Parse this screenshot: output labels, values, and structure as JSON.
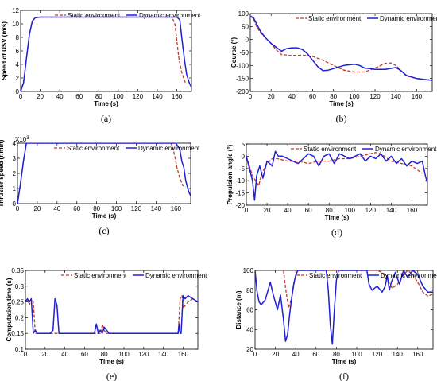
{
  "figure": {
    "legend_static": "Static environment",
    "legend_dynamic": "Dynamic environment",
    "colors": {
      "static": "#c0392b",
      "dynamic": "#1f1fd6",
      "axis": "#000000"
    }
  },
  "chart_data": [
    {
      "id": "a",
      "type": "line",
      "caption": "(a)",
      "xlabel": "Time (s)",
      "ylabel": "Speed of USV (m/s)",
      "xlim": [
        0,
        175
      ],
      "ylim": [
        0,
        12
      ],
      "xticks": [
        0,
        20,
        40,
        60,
        80,
        100,
        120,
        140,
        160
      ],
      "yticks": [
        0,
        2,
        4,
        6,
        8,
        10,
        12
      ],
      "legend": "top-right",
      "series": [
        {
          "name": "Static environment",
          "style": "dashed",
          "x": [
            0,
            3,
            6,
            9,
            12,
            15,
            20,
            40,
            60,
            80,
            100,
            120,
            140,
            155,
            158,
            160,
            162,
            165,
            168,
            170
          ],
          "y": [
            0,
            1.5,
            5,
            8.5,
            10.4,
            10.9,
            11,
            11,
            11,
            11,
            11,
            11,
            11,
            11,
            10,
            7.5,
            5,
            2.8,
            1.5,
            1.1
          ]
        },
        {
          "name": "Dynamic environment",
          "style": "solid",
          "x": [
            0,
            3,
            6,
            9,
            12,
            15,
            20,
            40,
            60,
            80,
            100,
            120,
            140,
            160,
            163,
            165,
            168,
            170,
            173,
            175
          ],
          "y": [
            0,
            1.3,
            5,
            8.5,
            10.4,
            10.9,
            11,
            11,
            11,
            11,
            11,
            11,
            11,
            11,
            10.6,
            8,
            4.5,
            2.5,
            1.2,
            0.6
          ]
        }
      ]
    },
    {
      "id": "b",
      "type": "line",
      "caption": "(b)",
      "xlabel": "Time (s)",
      "ylabel": "Course (°)",
      "xlim": [
        0,
        175
      ],
      "ylim": [
        -200,
        100
      ],
      "xticks": [
        0,
        20,
        40,
        60,
        80,
        100,
        120,
        140,
        160
      ],
      "yticks": [
        -200,
        -150,
        -100,
        -50,
        0,
        50,
        100
      ],
      "legend": "top-right",
      "series": [
        {
          "name": "Static environment",
          "style": "dashed",
          "x": [
            0,
            3,
            6,
            10,
            15,
            20,
            25,
            30,
            40,
            50,
            60,
            70,
            80,
            90,
            100,
            110,
            120,
            130,
            135,
            140,
            150,
            160,
            170,
            175
          ],
          "y": [
            90,
            80,
            50,
            25,
            5,
            -15,
            -40,
            -58,
            -62,
            -60,
            -65,
            -80,
            -100,
            -118,
            -125,
            -125,
            -110,
            -92,
            -90,
            -100,
            -140,
            -150,
            -155,
            -157
          ]
        },
        {
          "name": "Dynamic environment",
          "style": "solid",
          "x": [
            0,
            3,
            6,
            10,
            15,
            20,
            25,
            30,
            35,
            40,
            45,
            50,
            55,
            60,
            65,
            70,
            75,
            80,
            90,
            100,
            105,
            110,
            115,
            120,
            130,
            140,
            145,
            150,
            160,
            170,
            175
          ],
          "y": [
            90,
            85,
            60,
            30,
            5,
            -15,
            -30,
            -45,
            -35,
            -32,
            -32,
            -38,
            -55,
            -80,
            -105,
            -120,
            -118,
            -112,
            -100,
            -95,
            -100,
            -110,
            -112,
            -115,
            -115,
            -108,
            -120,
            -138,
            -150,
            -155,
            -157
          ]
        }
      ]
    },
    {
      "id": "c",
      "type": "line",
      "caption": "(c)",
      "xlabel": "Time (s)",
      "ylabel": "Thruster speed (r/min)",
      "xlim": [
        0,
        175
      ],
      "ylim": [
        0,
        4
      ],
      "xticks": [
        0,
        20,
        40,
        60,
        80,
        100,
        120,
        140,
        160
      ],
      "yticks": [
        0,
        1,
        2,
        3,
        4
      ],
      "y_exponent_label": "X10",
      "y_exponent_sup": "3",
      "legend": "top-right",
      "series": [
        {
          "name": "Static environment",
          "style": "dashed",
          "x": [
            0,
            3,
            6,
            9,
            20,
            40,
            60,
            80,
            100,
            120,
            140,
            155,
            157,
            159,
            161,
            164,
            167,
            170
          ],
          "y": [
            0,
            1.3,
            2.8,
            4,
            4,
            4,
            4,
            4,
            4,
            4,
            4,
            4,
            3.7,
            3.1,
            2.4,
            1.7,
            1.2,
            1.1
          ]
        },
        {
          "name": "Dynamic environment",
          "style": "solid",
          "x": [
            0,
            3,
            6,
            9,
            20,
            40,
            60,
            80,
            100,
            120,
            140,
            160,
            162,
            164,
            166,
            168,
            170,
            173,
            175
          ],
          "y": [
            0,
            1.3,
            2.8,
            4,
            4,
            4,
            4,
            4,
            4,
            4,
            4,
            4,
            3.8,
            3.6,
            2.8,
            2.4,
            1.5,
            0.8,
            0.5
          ]
        }
      ]
    },
    {
      "id": "d",
      "type": "line",
      "caption": "(d)",
      "xlabel": "Time (s)",
      "ylabel": "Propulsion angle (°)",
      "xlim": [
        0,
        175
      ],
      "ylim": [
        -20,
        5
      ],
      "xticks": [
        0,
        20,
        40,
        60,
        80,
        100,
        120,
        140,
        160
      ],
      "yticks": [
        -20,
        -15,
        -10,
        -5,
        0,
        5
      ],
      "legend": "top-right",
      "series": [
        {
          "name": "Static environment",
          "style": "dashed",
          "x": [
            0,
            3,
            6,
            9,
            12,
            15,
            20,
            25,
            30,
            40,
            50,
            60,
            70,
            80,
            90,
            100,
            110,
            120,
            125,
            130,
            140,
            150,
            160,
            170
          ],
          "y": [
            0,
            -4,
            -8,
            -10,
            -12,
            -7,
            -3,
            -1,
            -1,
            -2,
            -2,
            -3,
            -2,
            -2,
            -1,
            -1,
            0,
            1,
            1.5,
            1,
            -2,
            -3,
            -4,
            -7
          ]
        },
        {
          "name": "Dynamic environment",
          "style": "solid",
          "x": [
            0,
            3,
            6,
            8,
            10,
            13,
            16,
            20,
            25,
            28,
            31,
            35,
            40,
            45,
            50,
            55,
            60,
            65,
            70,
            75,
            80,
            85,
            90,
            95,
            100,
            105,
            110,
            115,
            120,
            125,
            130,
            135,
            140,
            145,
            150,
            155,
            160,
            165,
            170,
            173,
            175
          ],
          "y": [
            0,
            -5,
            -10,
            -18,
            -8,
            -4,
            -9,
            -2,
            -4,
            2,
            0,
            0,
            -1,
            -2,
            -3,
            -1,
            1,
            0,
            -4,
            0,
            1,
            -3,
            1,
            0,
            -1,
            0,
            1,
            -2,
            0,
            -1,
            1,
            -2,
            0,
            -3,
            -1,
            -4,
            -2,
            -3,
            -2,
            -8,
            -11
          ]
        }
      ]
    },
    {
      "id": "e",
      "type": "line",
      "caption": "(e)",
      "xlabel": "Time (s)",
      "ylabel": "Computation time (s)",
      "xlim": [
        0,
        175
      ],
      "ylim": [
        0.1,
        0.35
      ],
      "xticks": [
        0,
        20,
        40,
        60,
        80,
        100,
        120,
        140,
        160
      ],
      "yticks": [
        0.1,
        0.15,
        0.2,
        0.25,
        0.3,
        0.35
      ],
      "legend": "top-right",
      "series": [
        {
          "name": "Static environment",
          "style": "dashed",
          "x": [
            0,
            2,
            4,
            6,
            8,
            10,
            15,
            20,
            30,
            40,
            60,
            77,
            78,
            80,
            82,
            100,
            120,
            140,
            150,
            155,
            157,
            159,
            160,
            165,
            170,
            175
          ],
          "y": [
            0.25,
            0.26,
            0.24,
            0.26,
            0.25,
            0.15,
            0.15,
            0.15,
            0.15,
            0.15,
            0.15,
            0.15,
            0.18,
            0.16,
            0.15,
            0.15,
            0.15,
            0.15,
            0.15,
            0.15,
            0.26,
            0.27,
            0.23,
            0.25,
            0.26,
            0.25
          ]
        },
        {
          "name": "Dynamic environment",
          "style": "solid",
          "x": [
            0,
            2,
            4,
            6,
            8,
            10,
            12,
            15,
            20,
            25,
            28,
            30,
            32,
            34,
            36,
            40,
            50,
            60,
            70,
            72,
            74,
            76,
            78,
            80,
            85,
            90,
            100,
            110,
            120,
            130,
            140,
            150,
            155,
            156,
            157,
            158,
            160,
            162,
            165,
            170,
            175
          ],
          "y": [
            0.25,
            0.26,
            0.25,
            0.26,
            0.15,
            0.16,
            0.15,
            0.15,
            0.15,
            0.15,
            0.16,
            0.26,
            0.24,
            0.15,
            0.15,
            0.15,
            0.15,
            0.15,
            0.15,
            0.18,
            0.15,
            0.16,
            0.15,
            0.17,
            0.15,
            0.15,
            0.15,
            0.15,
            0.15,
            0.15,
            0.15,
            0.15,
            0.15,
            0.18,
            0.15,
            0.15,
            0.27,
            0.26,
            0.27,
            0.26,
            0.25
          ]
        }
      ]
    },
    {
      "id": "f",
      "type": "line",
      "caption": "(f)",
      "xlabel": "Time (s)",
      "ylabel": "Distance (m)",
      "xlim": [
        0,
        175
      ],
      "ylim": [
        20,
        100
      ],
      "xticks": [
        0,
        20,
        40,
        60,
        80,
        100,
        120,
        140,
        160
      ],
      "yticks": [
        20,
        40,
        60,
        80,
        100
      ],
      "legend": "top-right",
      "series": [
        {
          "name": "Static environment",
          "style": "dashed",
          "x": [
            28,
            30,
            33,
            36,
            40,
            42,
            100,
            120,
            125,
            130,
            135,
            140,
            145,
            150,
            155,
            160,
            165,
            170,
            175
          ],
          "y": [
            100,
            82,
            62,
            72,
            96,
            100,
            100,
            100,
            98,
            90,
            82,
            86,
            94,
            100,
            96,
            88,
            78,
            74,
            76
          ]
        },
        {
          "name": "Dynamic environment",
          "style": "solid",
          "x": [
            0,
            2,
            4,
            6,
            10,
            15,
            18,
            22,
            25,
            28,
            30,
            32,
            34,
            36,
            38,
            40,
            42,
            70,
            72,
            74,
            76,
            78,
            80,
            82,
            110,
            112,
            115,
            120,
            125,
            128,
            130,
            132,
            134,
            138,
            142,
            146,
            150,
            155,
            160,
            165,
            170,
            175
          ],
          "y": [
            100,
            78,
            68,
            65,
            70,
            88,
            75,
            60,
            75,
            50,
            28,
            35,
            55,
            72,
            86,
            95,
            100,
            100,
            80,
            45,
            25,
            60,
            90,
            100,
            100,
            86,
            80,
            84,
            78,
            84,
            95,
            80,
            88,
            98,
            86,
            100,
            93,
            100,
            96,
            84,
            78,
            78
          ]
        }
      ]
    }
  ]
}
